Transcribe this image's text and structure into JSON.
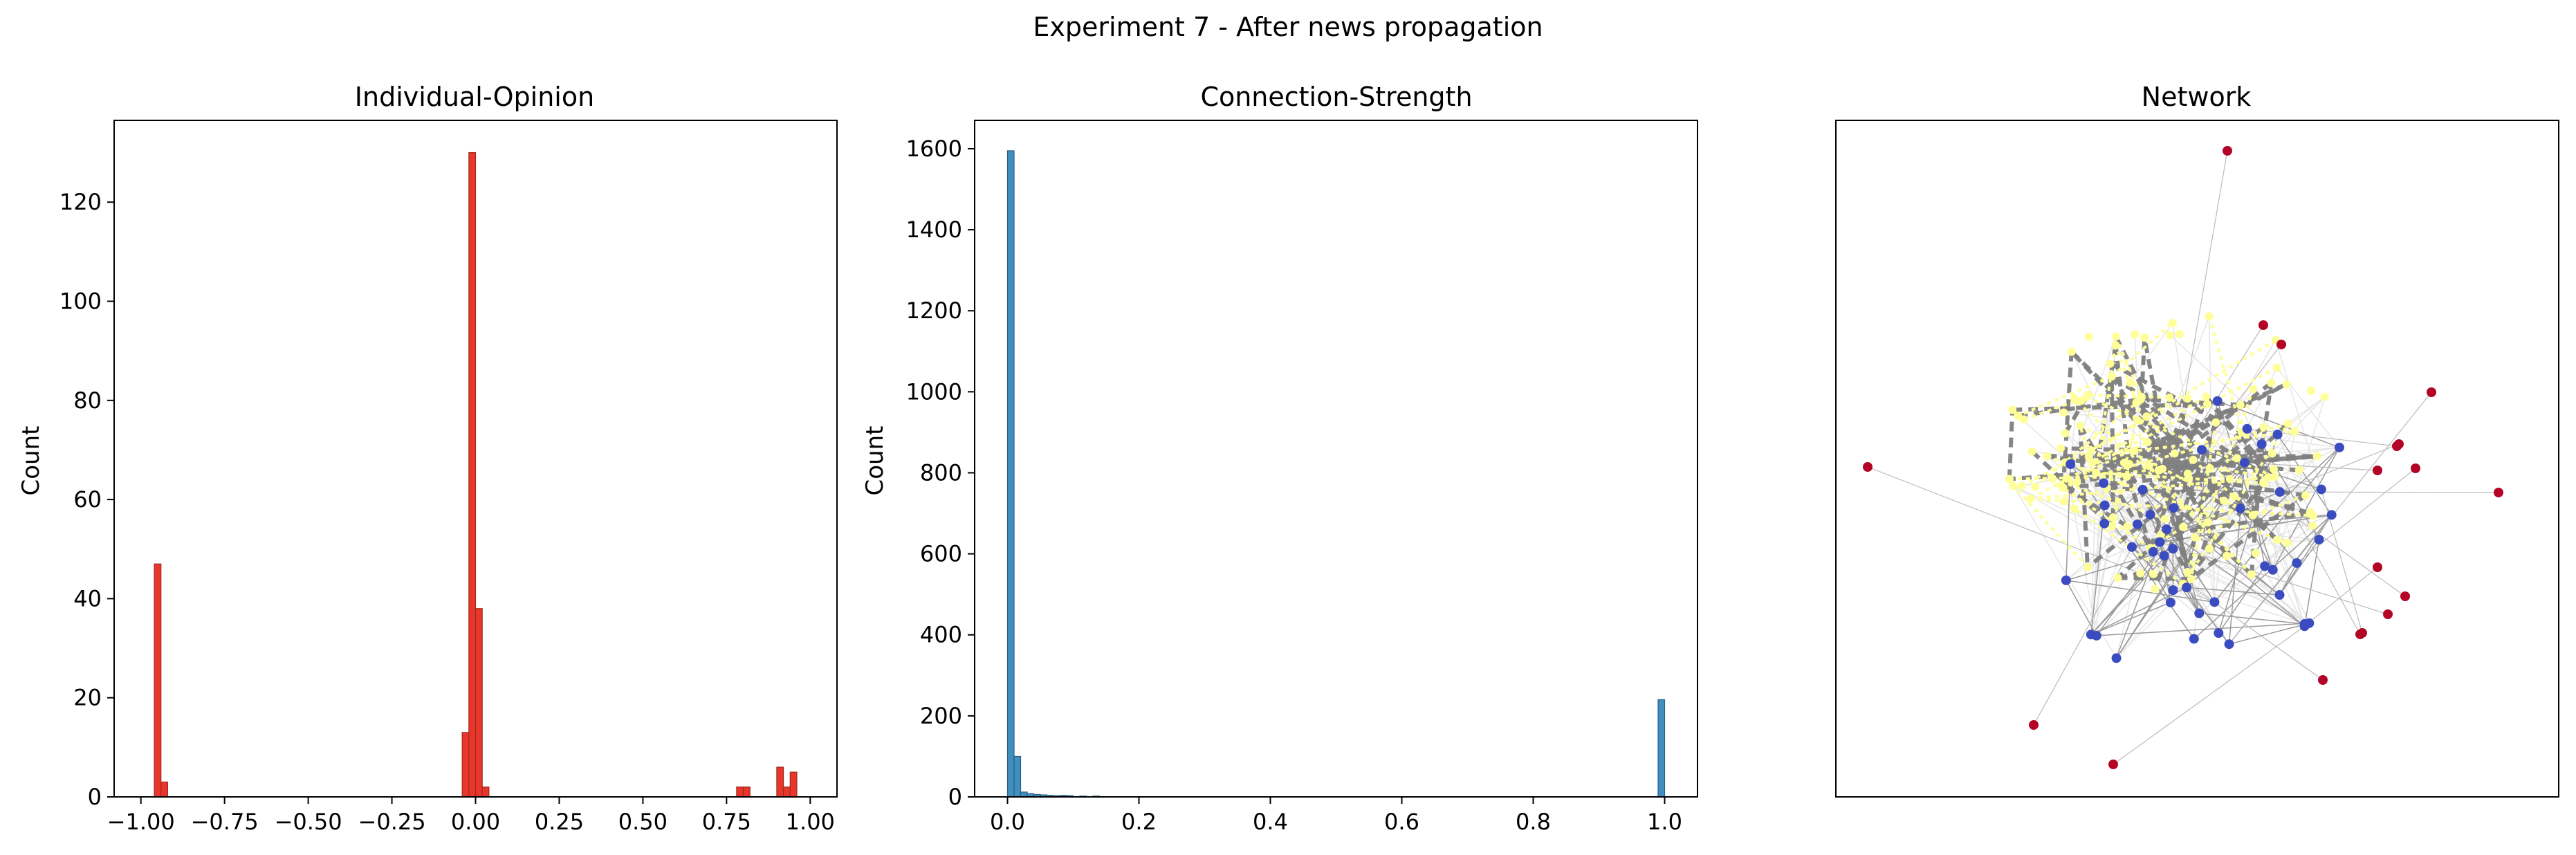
{
  "figure": {
    "suptitle": "Experiment 7 - After news propagation"
  },
  "colors": {
    "opinion_bar": "#e8362b",
    "strength_bar": "#3f8fc0",
    "node_red": "#b40426",
    "node_blue": "#3b4cc0",
    "node_yellow": "#ffff99",
    "edge_gray": "#808080"
  },
  "chart_data": [
    {
      "type": "bar",
      "title": "Individual-Opinion",
      "ylabel": "Count",
      "xlabel": "",
      "xlim": [
        -1.08,
        1.08
      ],
      "ylim": [
        0,
        136.5
      ],
      "xticks": [
        -1.0,
        -0.75,
        -0.5,
        -0.25,
        0.0,
        0.25,
        0.5,
        0.75,
        1.0
      ],
      "xtick_labels": [
        "−1.00",
        "−0.75",
        "−0.50",
        "−0.25",
        "0.00",
        "0.25",
        "0.50",
        "0.75",
        "1.00"
      ],
      "yticks": [
        0,
        20,
        40,
        60,
        80,
        100,
        120
      ],
      "ytick_labels": [
        "0",
        "20",
        "40",
        "60",
        "80",
        "100",
        "120"
      ],
      "bin_width": 0.02,
      "bins": [
        {
          "x": -0.95,
          "count": 47
        },
        {
          "x": -0.93,
          "count": 3
        },
        {
          "x": -0.03,
          "count": 13
        },
        {
          "x": -0.01,
          "count": 130
        },
        {
          "x": 0.01,
          "count": 38
        },
        {
          "x": 0.03,
          "count": 2
        },
        {
          "x": 0.79,
          "count": 2
        },
        {
          "x": 0.81,
          "count": 2
        },
        {
          "x": 0.91,
          "count": 6
        },
        {
          "x": 0.93,
          "count": 2
        },
        {
          "x": 0.95,
          "count": 5
        }
      ]
    },
    {
      "type": "bar",
      "title": "Connection-Strength",
      "ylabel": "Count",
      "xlabel": "",
      "xlim": [
        -0.05,
        1.05
      ],
      "ylim": [
        0,
        1670
      ],
      "xticks": [
        0.0,
        0.2,
        0.4,
        0.6,
        0.8,
        1.0
      ],
      "xtick_labels": [
        "0.0",
        "0.2",
        "0.4",
        "0.6",
        "0.8",
        "1.0"
      ],
      "yticks": [
        0,
        200,
        400,
        600,
        800,
        1000,
        1200,
        1400,
        1600
      ],
      "ytick_labels": [
        "0",
        "200",
        "400",
        "600",
        "800",
        "1000",
        "1200",
        "1400",
        "1600"
      ],
      "bin_width": 0.01,
      "bins": [
        {
          "x": 0.005,
          "count": 1595
        },
        {
          "x": 0.015,
          "count": 100
        },
        {
          "x": 0.025,
          "count": 12
        },
        {
          "x": 0.035,
          "count": 8
        },
        {
          "x": 0.045,
          "count": 6
        },
        {
          "x": 0.055,
          "count": 5
        },
        {
          "x": 0.065,
          "count": 4
        },
        {
          "x": 0.075,
          "count": 3
        },
        {
          "x": 0.085,
          "count": 4
        },
        {
          "x": 0.095,
          "count": 3
        },
        {
          "x": 0.115,
          "count": 2
        },
        {
          "x": 0.135,
          "count": 2
        },
        {
          "x": 0.995,
          "count": 240
        }
      ]
    },
    {
      "type": "network",
      "title": "Network",
      "node_groups": [
        {
          "name": "red",
          "count": 18
        },
        {
          "name": "blue",
          "count": 45
        },
        {
          "name": "yellow",
          "count": 120
        }
      ]
    }
  ]
}
